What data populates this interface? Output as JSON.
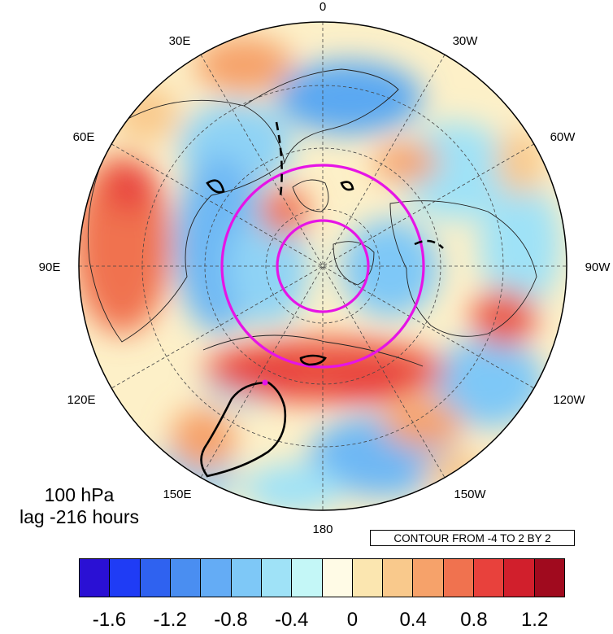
{
  "map": {
    "projection": "north-polar-stereographic",
    "longitude_labels": [
      "0",
      "30W",
      "60W",
      "90W",
      "120W",
      "150W",
      "180",
      "150E",
      "120E",
      "90E",
      "60E",
      "30E"
    ],
    "left_text_line1": "100 hPa",
    "left_text_line2": "lag -216 hours",
    "contour_note": "CONTOUR FROM -4 TO 2 BY 2",
    "contour_line_color": "#000000",
    "circle_color": "#e614e6",
    "highlight_point_color": "#e614e6"
  },
  "colorbar": {
    "colors": [
      "#2a10d4",
      "#1f3cf5",
      "#2f62f0",
      "#4a8ef1",
      "#64acf5",
      "#7ec8f7",
      "#9fe2f7",
      "#c4f7f7",
      "#fffbe6",
      "#fbe6b0",
      "#f9c98c",
      "#f6a26a",
      "#f0724f",
      "#e8413c",
      "#d11f2c",
      "#a00a1e"
    ],
    "tick_labels": [
      "-1.6",
      "-1.2",
      "-0.8",
      "-0.4",
      "0",
      "0.4",
      "0.8",
      "1.2"
    ]
  }
}
